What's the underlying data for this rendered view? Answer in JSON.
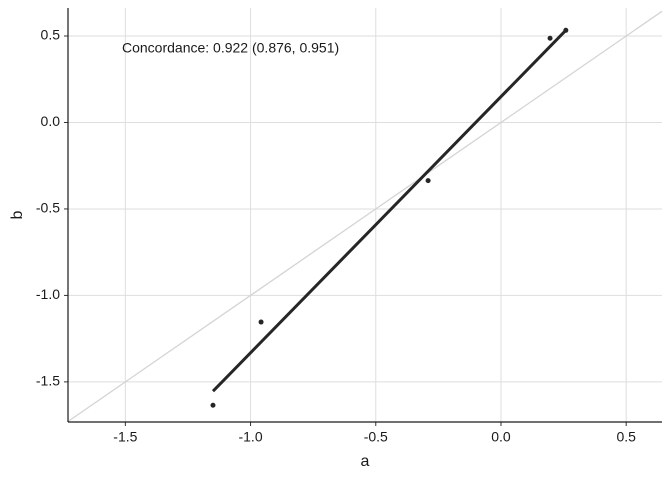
{
  "chart_data": {
    "type": "scatter",
    "x_label": "a",
    "y_label": "b",
    "annotation": "Concordance: 0.922 (0.876, 0.951)",
    "x": [
      -1.15,
      -0.958,
      -0.291,
      0.196,
      0.259
    ],
    "values": [
      -1.635,
      -1.154,
      -0.336,
      0.487,
      0.533
    ],
    "color": "#262626",
    "fit": {
      "x": [
        -1.15,
        0.259
      ],
      "y": [
        -1.554,
        0.533
      ],
      "color": "#262626"
    },
    "identity_line": true,
    "xlim": [
      -1.729,
      0.643
    ],
    "ylim": [
      -1.732,
      0.662
    ],
    "xticks": [
      -1.5,
      {
        "value": -1,
        "label": "-1.0"
      },
      -0.5,
      {
        "value": 0,
        "label": "0.0"
      },
      0.5
    ],
    "yticks": [
      -1.5,
      {
        "value": -1,
        "label": "-1.0"
      },
      -0.5,
      {
        "value": 0,
        "label": "0.0"
      },
      0.5
    ],
    "grid": true
  }
}
